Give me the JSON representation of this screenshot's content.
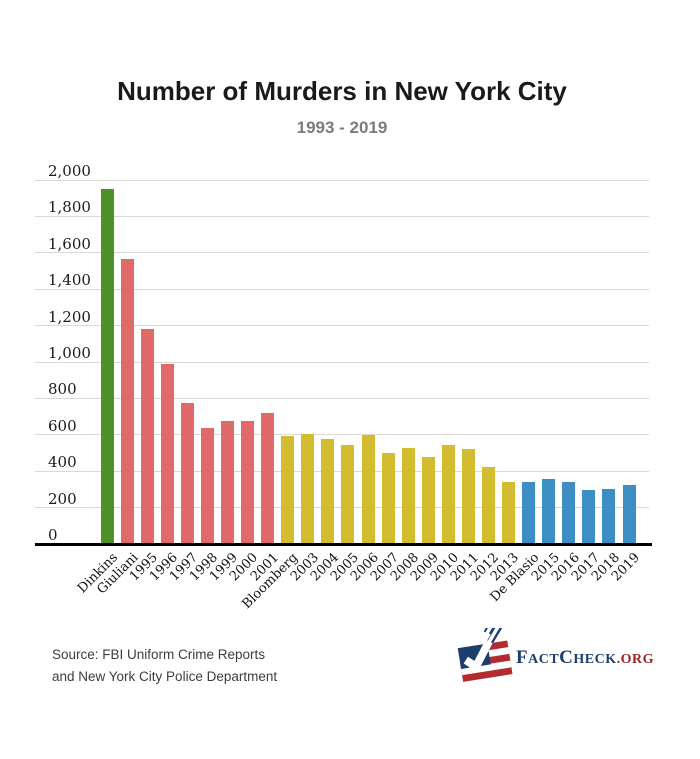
{
  "header": {
    "title": "Number of Murders in New York City",
    "subtitle": "1993 - 2019"
  },
  "footer": {
    "source_line1": "Source: FBI Uniform Crime Reports",
    "source_line2": "and New York City Police Department",
    "logo": {
      "brand": "FactCheck",
      "suffix": ".org",
      "brand_color": "#1c3e6e",
      "suffix_color": "#9c2423"
    }
  },
  "colors": {
    "dinkins_green": "#4d9128",
    "giuliani_red": "#e0696a",
    "bloomberg_yellow": "#d4bc31",
    "deblasio_blue": "#3d8ec4",
    "gridline": "#d9d9d9",
    "axis": "#000000",
    "title_text": "#1a1a1a",
    "subtitle_text": "#7b7b7b"
  },
  "chart_data": {
    "type": "bar",
    "title": "Number of Murders in New York City",
    "subtitle": "1993 - 2019",
    "categories": [
      "Dinkins",
      "Giuliani",
      "1995",
      "1996",
      "1997",
      "1998",
      "1999",
      "2000",
      "2001",
      "Bloomberg",
      "2003",
      "2004",
      "2005",
      "2006",
      "2007",
      "2008",
      "2009",
      "2010",
      "2011",
      "2012",
      "2013",
      "De Blasio",
      "2015",
      "2016",
      "2017",
      "2018",
      "2019"
    ],
    "values": [
      1946,
      1561,
      1177,
      983,
      770,
      633,
      671,
      673,
      714,
      587,
      597,
      570,
      539,
      596,
      496,
      523,
      471,
      536,
      515,
      419,
      335,
      333,
      352,
      335,
      292,
      295,
      319
    ],
    "mayor_groups": [
      {
        "mayor": "Dinkins",
        "from_index": 0,
        "to_index": 0,
        "color": "#4d9128"
      },
      {
        "mayor": "Giuliani",
        "from_index": 1,
        "to_index": 8,
        "color": "#e0696a"
      },
      {
        "mayor": "Bloomberg",
        "from_index": 9,
        "to_index": 20,
        "color": "#d4bc31"
      },
      {
        "mayor": "De Blasio",
        "from_index": 21,
        "to_index": 26,
        "color": "#3d8ec4"
      }
    ],
    "xlabel": "",
    "ylabel": "",
    "ylim": [
      0,
      2000
    ],
    "ytick_step": 200,
    "ytick_labels": [
      "0",
      "200",
      "400",
      "600",
      "800",
      "1,000",
      "1,200",
      "1,400",
      "1,600",
      "1,800",
      "2,000"
    ],
    "grid": true,
    "legend": "none"
  }
}
